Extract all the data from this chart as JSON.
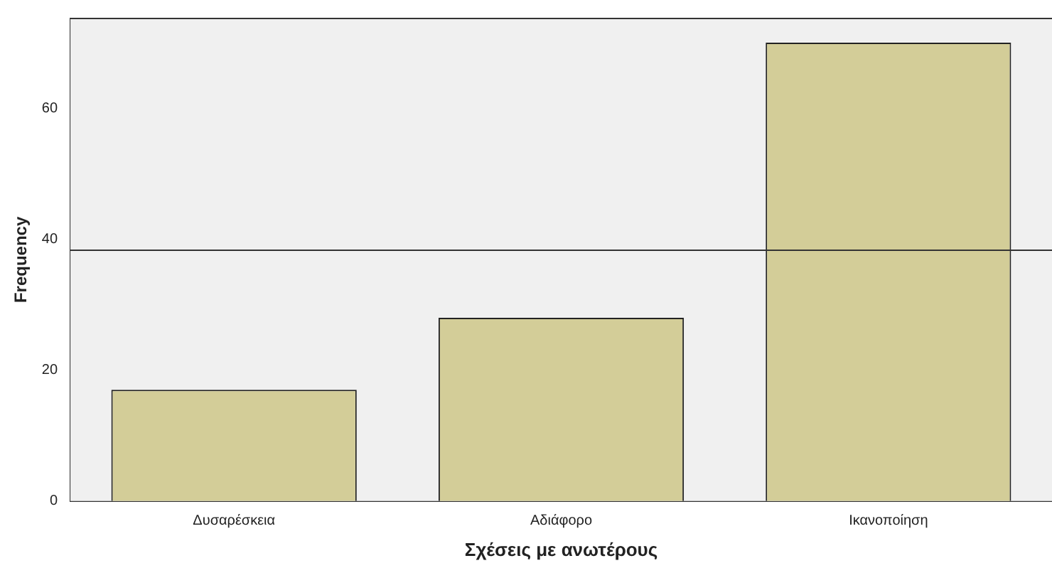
{
  "chart_data": {
    "type": "bar",
    "xlabel": "Σχέσεις με ανωτέρους",
    "ylabel": "Frequency",
    "categories": [
      "Δυσαρέσκεια",
      "Αδιάφορο",
      "Ικανοποίηση"
    ],
    "values": [
      17,
      28,
      70
    ],
    "color": "#d3cd98",
    "ylim": [
      0,
      73.7
    ],
    "yticks": [
      0,
      20,
      40,
      60
    ],
    "ref_lines": [
      {
        "axis": "y",
        "value": 38.3,
        "color": "#333333"
      }
    ],
    "grid": false,
    "legend": false
  }
}
